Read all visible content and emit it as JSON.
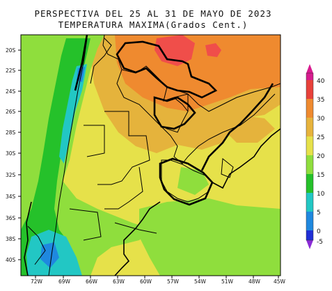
{
  "title": {
    "line1": "PERSPECTIVA DEL 25 AL 31 DE MAYO DE 2023",
    "line2": "TEMPERATURA MAXIMA(Grados Cent.)"
  },
  "axes": {
    "lat_labels": [
      "20S",
      "22S",
      "24S",
      "26S",
      "28S",
      "30S",
      "32S",
      "34S",
      "36S",
      "38S",
      "40S"
    ],
    "lon_labels": [
      "72W",
      "69W",
      "66W",
      "63W",
      "60W",
      "57W",
      "54W",
      "51W",
      "48W",
      "45W"
    ]
  },
  "colorbar": {
    "labels": [
      "40",
      "35",
      "30",
      "25",
      "20",
      "15",
      "10",
      "5",
      "0",
      "-5"
    ],
    "colors": [
      "#d81b8f",
      "#e8413a",
      "#ef8a2f",
      "#e7b33c",
      "#e6e14a",
      "#8fde3d",
      "#25c12a",
      "#22c7c4",
      "#1f88df",
      "#1f2fd6",
      "#8b2bd6"
    ]
  },
  "region_colors": {
    "hot": "#ef8a2f",
    "very_hot": "#f04e4a",
    "warm": "#e5b33c",
    "mild": "#e6e14a",
    "cool": "#8fde3d",
    "cold": "#25c12a",
    "very_cold": "#22c7c4",
    "frigid": "#1f88df"
  }
}
